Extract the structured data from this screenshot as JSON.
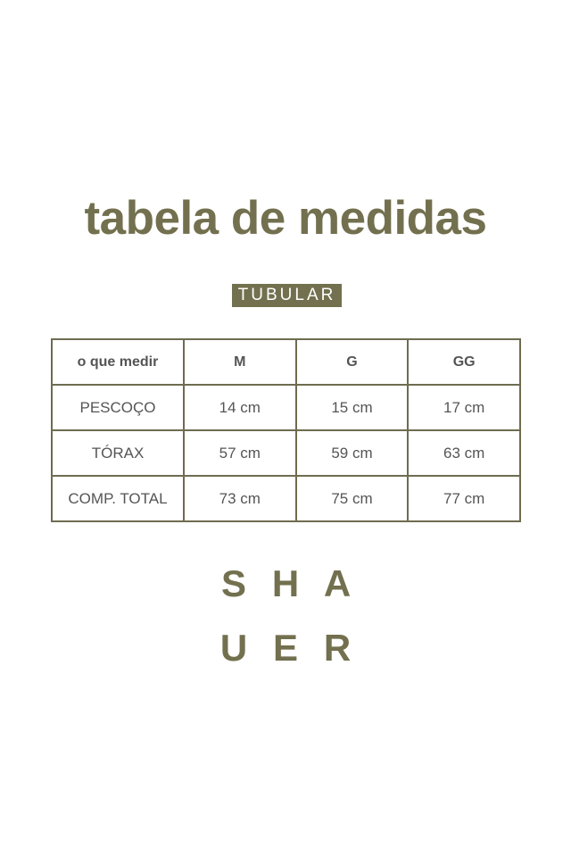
{
  "title": "tabela de medidas",
  "tag": "TUBULAR",
  "table": {
    "headers": [
      "o que medir",
      "M",
      "G",
      "GG"
    ],
    "rows": [
      [
        "PESCOÇO",
        "14 cm",
        "15 cm",
        "17 cm"
      ],
      [
        "TÓRAX",
        "57 cm",
        "59 cm",
        "63 cm"
      ],
      [
        "COMP. TOTAL",
        "73 cm",
        "75 cm",
        "77 cm"
      ]
    ]
  },
  "logo": {
    "line1": [
      "S",
      "H",
      "A"
    ],
    "line2": [
      "U",
      "E",
      "R"
    ]
  },
  "colors": {
    "accent": "#72704e",
    "text": "#555555"
  }
}
